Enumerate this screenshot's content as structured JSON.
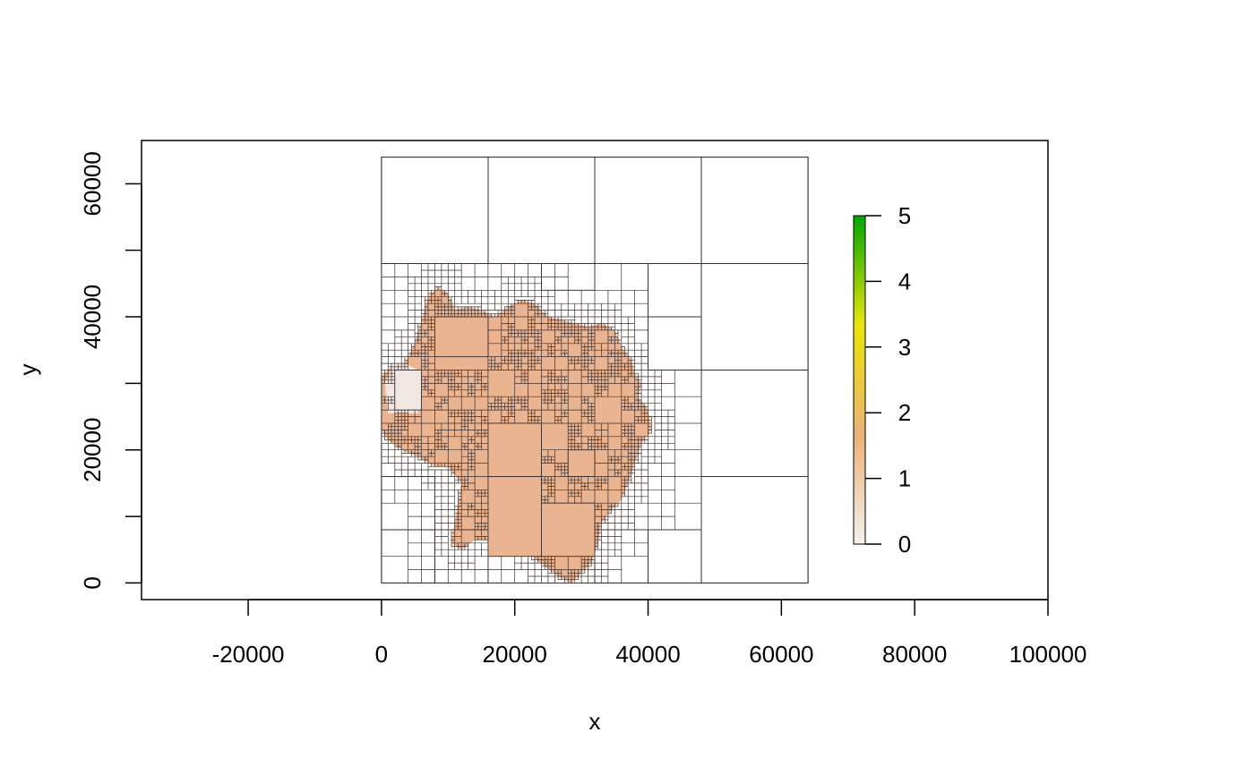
{
  "chart_data": {
    "type": "heatmap",
    "xlabel": "x",
    "ylabel": "y",
    "xlim": [
      -36000,
      100000
    ],
    "ylim": [
      -2500,
      66500
    ],
    "x_ticks": [
      -20000,
      0,
      20000,
      40000,
      60000,
      80000,
      100000
    ],
    "y_ticks": [
      0,
      10000,
      20000,
      30000,
      40000,
      50000,
      60000
    ],
    "y_tick_labels": [
      "0",
      "",
      "20000",
      "",
      "40000",
      "",
      "60000"
    ],
    "grid_extent": {
      "xmin": 0,
      "xmax": 64000,
      "ymin": 0,
      "ymax": 64000
    },
    "legend": {
      "position": "right",
      "range": [
        0,
        5
      ],
      "ticks": [
        0,
        1,
        2,
        3,
        4,
        5
      ],
      "colors": [
        "#f2f2f2",
        "#ecb176",
        "#e8e600",
        "#00a600"
      ]
    },
    "fill_colors": {
      "value_1": "#ebb491",
      "value_0": "#f0e6e2"
    },
    "cells": [
      {
        "x0": 0,
        "x1": 16000,
        "y0": 48000,
        "y1": 64000,
        "value": null
      },
      {
        "x0": 16000,
        "x1": 32000,
        "y0": 48000,
        "y1": 64000,
        "value": null
      },
      {
        "x0": 32000,
        "x1": 48000,
        "y0": 48000,
        "y1": 64000,
        "value": null
      },
      {
        "x0": 48000,
        "x1": 64000,
        "y0": 48000,
        "y1": 64000,
        "value": null
      },
      {
        "x0": 48000,
        "x1": 64000,
        "y0": 32000,
        "y1": 48000,
        "value": null
      },
      {
        "x0": 48000,
        "x1": 64000,
        "y0": 16000,
        "y1": 32000,
        "value": null
      },
      {
        "x0": 48000,
        "x1": 64000,
        "y0": 0,
        "y1": 16000,
        "value": null
      },
      {
        "x0": 40000,
        "x1": 48000,
        "y0": 40000,
        "y1": 48000,
        "value": null
      },
      {
        "x0": 40000,
        "x1": 48000,
        "y0": 32000,
        "y1": 40000,
        "value": null
      },
      {
        "x0": 40000,
        "x1": 48000,
        "y0": 0,
        "y1": 8000,
        "value": null
      },
      {
        "x0": 0,
        "x1": 8000,
        "y0": 0,
        "y1": 8000,
        "value": null
      },
      {
        "x0": 8000,
        "x1": 16000,
        "y0": 0,
        "y1": 8000,
        "value": null
      },
      {
        "x0": 0,
        "x1": 8000,
        "y0": 8000,
        "y1": 16000,
        "value": null
      },
      {
        "x0": 32000,
        "x1": 40000,
        "y0": 0,
        "y1": 8000,
        "value": null
      },
      {
        "x0": 24000,
        "x1": 32000,
        "y0": 44000,
        "y1": 48000,
        "value": null
      },
      {
        "x0": 16000,
        "x1": 24000,
        "y0": 4000,
        "y1": 16000,
        "value": 1
      },
      {
        "x0": 24000,
        "x1": 32000,
        "y0": 4000,
        "y1": 12000,
        "value": 1
      },
      {
        "x0": 16000,
        "x1": 24000,
        "y0": 16000,
        "y1": 24000,
        "value": 1
      },
      {
        "x0": 8000,
        "x1": 16000,
        "y0": 34000,
        "y1": 40000,
        "value": 1
      },
      {
        "x0": 28000,
        "x1": 32000,
        "y0": 16000,
        "y1": 20000,
        "value": 1
      },
      {
        "x0": 2000,
        "x1": 6000,
        "y0": 26000,
        "y1": 32000,
        "value": 0
      }
    ]
  }
}
